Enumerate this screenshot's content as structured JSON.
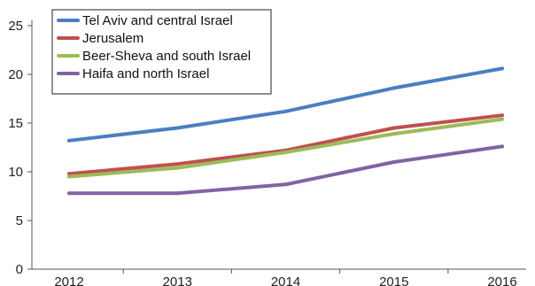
{
  "chart_data": {
    "type": "line",
    "title": "",
    "xlabel": "",
    "ylabel": "",
    "categories": [
      "2012",
      "2013",
      "2014",
      "2015",
      "2016"
    ],
    "ylim": [
      0,
      25
    ],
    "yticks": [
      0,
      5,
      10,
      15,
      20,
      25
    ],
    "grid": false,
    "legend_position": "top-left",
    "series": [
      {
        "name": "Tel Aviv and central Israel",
        "color": "#4a7fc1",
        "values": [
          13.2,
          14.5,
          16.2,
          18.6,
          20.6
        ]
      },
      {
        "name": "Jerusalem",
        "color": "#c0504d",
        "values": [
          9.8,
          10.8,
          12.2,
          14.5,
          15.8
        ]
      },
      {
        "name": "Beer-Sheva and south Israel",
        "color": "#9bbb59",
        "values": [
          9.5,
          10.4,
          12.0,
          13.9,
          15.4
        ]
      },
      {
        "name": "Haifa and north Israel",
        "color": "#8064a2",
        "values": [
          7.8,
          7.8,
          8.7,
          11.0,
          12.6
        ]
      }
    ]
  }
}
